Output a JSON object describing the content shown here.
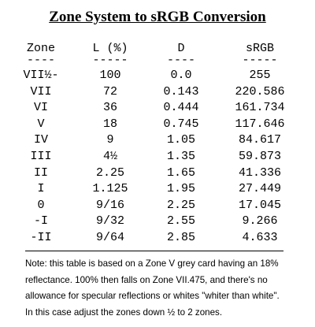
{
  "title": "Zone System to sRGB Conversion",
  "table": {
    "header": [
      "Zone",
      "L (%)",
      "D",
      "sRGB"
    ],
    "header_rule": [
      "----",
      "-----",
      "----",
      "-----"
    ],
    "rows": [
      [
        "VII½-",
        "100",
        "0.0",
        "255"
      ],
      [
        "VII",
        "72",
        "0.143",
        "220.586"
      ],
      [
        "VI",
        "36",
        "0.444",
        "161.734"
      ],
      [
        "V",
        "18",
        "0.745",
        "117.646"
      ],
      [
        "IV",
        "9",
        "1.05",
        "84.617"
      ],
      [
        "III",
        "4½",
        "1.35",
        "59.873"
      ],
      [
        "II",
        "2.25",
        "1.65",
        "41.336"
      ],
      [
        "I",
        "1.125",
        "1.95",
        "27.449"
      ],
      [
        "0",
        "9/16",
        "2.25",
        "17.045"
      ],
      [
        "-I",
        "9/32",
        "2.55",
        "9.266"
      ],
      [
        "-II",
        "9/64",
        "2.85",
        "4.633"
      ]
    ]
  },
  "note": [
    "Note: this table is based on a Zone V grey card having an 18%",
    "reflectance. 100% then falls on Zone VII.475, and there's no",
    "allowance for specular reflections or whites \"whiter than white\".",
    "In this case adjust the zones down ½ to 2 zones."
  ]
}
